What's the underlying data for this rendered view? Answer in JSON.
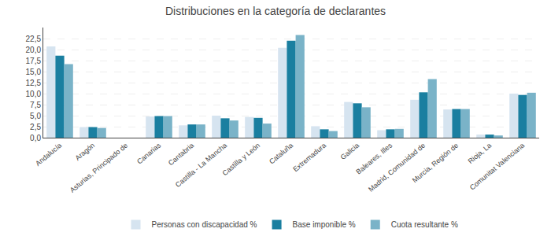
{
  "chart_data": {
    "type": "bar",
    "title": "Distribuciones en la categoría de declarantes",
    "categories": [
      "Andalucía",
      "Aragón",
      "Asturias, Principado de",
      "Canarias",
      "Cantabria",
      "Castilla - La Mancha",
      "Castilla y León",
      "Cataluña",
      "Extremadura",
      "Galicia",
      "Baleares, Illes",
      "Madrid, Comunidad de",
      "Murcia, Región de",
      "Rioja, La",
      "Comunitat Valenciana"
    ],
    "series": [
      {
        "name": "Personas con discapacidad %",
        "color": "#d6e4f0",
        "values": [
          20.7,
          2.4,
          0.0,
          4.8,
          2.8,
          5.0,
          4.7,
          20.4,
          2.6,
          8.1,
          1.7,
          8.6,
          6.4,
          0.7,
          10.0
        ]
      },
      {
        "name": "Base imponible %",
        "color": "#1a7fa0",
        "values": [
          18.6,
          2.4,
          0.0,
          4.9,
          3.0,
          4.4,
          4.5,
          22.0,
          1.9,
          7.8,
          1.9,
          10.3,
          6.5,
          0.7,
          9.7
        ]
      },
      {
        "name": "Cuota resultante %",
        "color": "#7ab3c8",
        "values": [
          16.7,
          2.2,
          0.0,
          4.9,
          3.0,
          3.9,
          3.2,
          23.3,
          1.5,
          6.9,
          2.0,
          13.3,
          6.5,
          0.5,
          10.2
        ]
      }
    ],
    "ylim": [
      0,
      25
    ],
    "yticks": [
      {
        "value": 0.0,
        "label": "0,0"
      },
      {
        "value": 2.5,
        "label": "2,5"
      },
      {
        "value": 5.0,
        "label": "5,0"
      },
      {
        "value": 7.5,
        "label": "7,5"
      },
      {
        "value": 10.0,
        "label": "10,0"
      },
      {
        "value": 12.5,
        "label": "12,5"
      },
      {
        "value": 15.0,
        "label": "15,0"
      },
      {
        "value": 17.5,
        "label": "17,5"
      },
      {
        "value": 20.0,
        "label": "20,0"
      },
      {
        "value": 22.5,
        "label": "22,5"
      }
    ],
    "grid": true,
    "legend": "bottom"
  }
}
